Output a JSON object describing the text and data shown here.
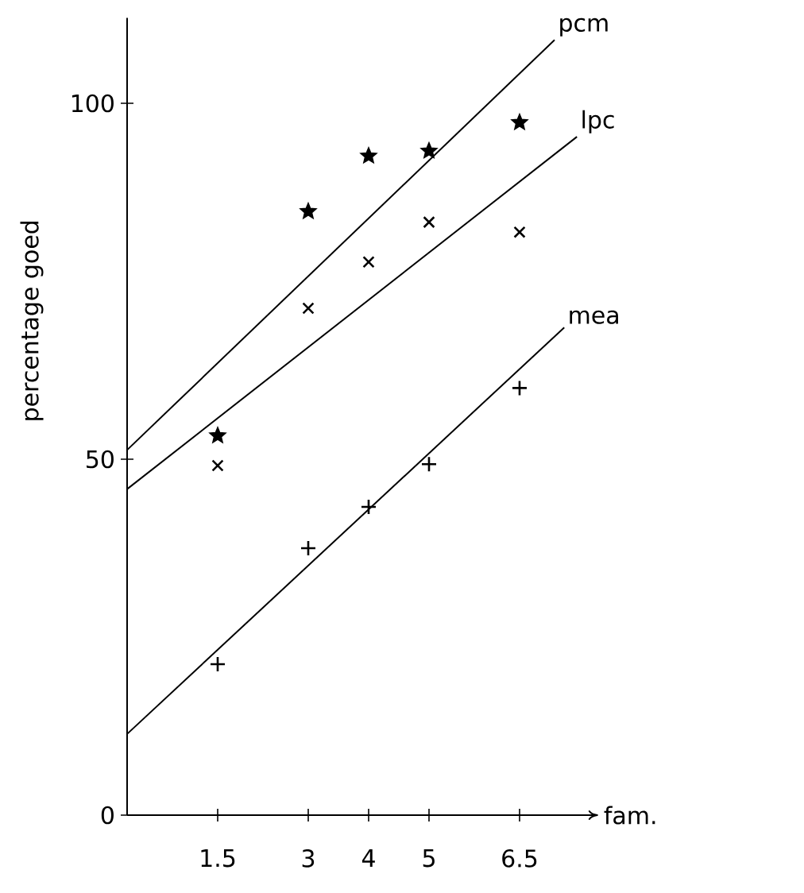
{
  "chart_data": {
    "type": "scatter",
    "xlabel": "fam.",
    "ylabel": "percentage goed",
    "xlim": [
      0,
      7.8
    ],
    "ylim": [
      0,
      112
    ],
    "xticks": [
      1.5,
      3,
      4,
      5,
      6.5
    ],
    "yticks": [
      0,
      50,
      100
    ],
    "grid": false,
    "legend": false,
    "x": [
      1.5,
      3,
      4,
      5,
      6.5
    ],
    "series": [
      {
        "type": "line",
        "name": "pcm",
        "color": "#000000",
        "line_style": "solid",
        "marker": "none",
        "x": [
          0,
          7.08
        ],
        "values": [
          51.3,
          108.9
        ]
      },
      {
        "type": "line",
        "name": "lpc",
        "color": "#000000",
        "line_style": "solid",
        "marker": "none",
        "x": [
          0,
          7.45
        ],
        "values": [
          45.8,
          95.3
        ]
      },
      {
        "type": "line",
        "name": "mea",
        "color": "#000000",
        "line_style": "solid",
        "marker": "none",
        "x": [
          0,
          7.24
        ],
        "values": [
          11.4,
          68.5
        ]
      },
      {
        "color": "#000000",
        "marker": "star",
        "values": [
          53.3,
          84.8,
          92.6,
          93.3,
          97.3
        ]
      },
      {
        "color": "#000000",
        "marker": "cross",
        "values": [
          49.1,
          71.2,
          77.7,
          83.3,
          81.9
        ]
      },
      {
        "color": "#000000",
        "marker": "plus",
        "values": [
          21.2,
          37.5,
          43.3,
          49.3,
          60.0
        ]
      }
    ]
  }
}
